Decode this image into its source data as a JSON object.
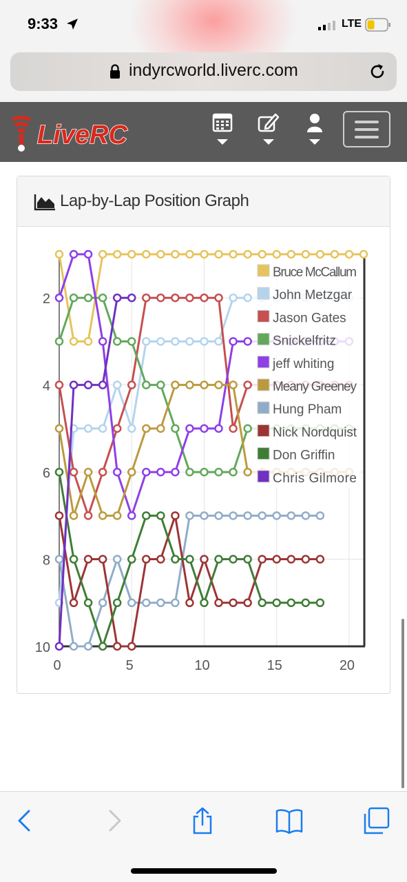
{
  "status_bar": {
    "time": "9:33",
    "network": "LTE"
  },
  "browser": {
    "url": "indyrcworld.liverc.com"
  },
  "site": {
    "brand": "LiveRC"
  },
  "nav_icons": [
    "calendar-icon",
    "edit-icon",
    "user-icon"
  ],
  "panel": {
    "title": "Lap-by-Lap Position Graph"
  },
  "chart_data": {
    "type": "line",
    "title": "Lap-by-Lap Position Graph",
    "xlim": [
      0,
      21
    ],
    "ylim": [
      10,
      1
    ],
    "y_reversed": true,
    "x_ticks": [
      0,
      5,
      10,
      15,
      20
    ],
    "y_ticks": [
      2,
      4,
      6,
      8,
      10
    ],
    "grid": true,
    "legend_position": "top-right",
    "series": [
      {
        "name": "Bruce McCallum",
        "color": "#e6c35c",
        "values": [
          1,
          3,
          3,
          1,
          1,
          1,
          1,
          1,
          1,
          1,
          1,
          1,
          1,
          1,
          1,
          1,
          1,
          1,
          1,
          1,
          1,
          1
        ]
      },
      {
        "name": "John Metzgar",
        "color": "#b4d4ee",
        "values": [
          9,
          5,
          5,
          5,
          4,
          5,
          3,
          3,
          3,
          3,
          3,
          3,
          2,
          2,
          2,
          2,
          2,
          2,
          2,
          2,
          2
        ]
      },
      {
        "name": "Jason Gates",
        "color": "#c64f4f",
        "values": [
          4,
          6,
          7,
          6,
          5,
          4,
          2,
          2,
          2,
          2,
          2,
          2,
          5,
          4,
          4,
          4,
          4,
          4,
          4,
          4,
          4
        ]
      },
      {
        "name": "Snickelfritz",
        "color": "#62a85c",
        "values": [
          3,
          2,
          2,
          2,
          3,
          3,
          4,
          4,
          5,
          6,
          6,
          6,
          6,
          5,
          5,
          5,
          5,
          5,
          5,
          5,
          5
        ]
      },
      {
        "name": "jeff whiting",
        "color": "#8e3fe6",
        "values": [
          2,
          1,
          1,
          3,
          6,
          7,
          6,
          6,
          6,
          5,
          5,
          5,
          3,
          3,
          3,
          3,
          3,
          3,
          3,
          3,
          3
        ]
      },
      {
        "name": "Meany Greeney",
        "color": "#bb9a3f",
        "values": [
          5,
          7,
          6,
          7,
          7,
          6,
          5,
          5,
          4,
          4,
          4,
          4,
          4,
          6,
          6,
          6,
          6,
          6,
          6,
          6,
          6
        ]
      },
      {
        "name": "Hung Pham",
        "color": "#90acc8",
        "values": [
          8,
          10,
          10,
          9,
          8,
          9,
          9,
          9,
          9,
          7,
          7,
          7,
          7,
          7,
          7,
          7,
          7,
          7,
          7
        ]
      },
      {
        "name": "Nick Nordquist",
        "color": "#9c3434",
        "values": [
          7,
          9,
          8,
          8,
          10,
          10,
          8,
          8,
          7,
          9,
          8,
          9,
          9,
          9,
          8,
          8,
          8,
          8,
          8
        ]
      },
      {
        "name": "Don Griffin",
        "color": "#3f7d36",
        "values": [
          6,
          8,
          9,
          10,
          9,
          8,
          7,
          7,
          8,
          8,
          9,
          8,
          8,
          8,
          9,
          9,
          9,
          9,
          9
        ]
      },
      {
        "name": "Chris Gilmore",
        "color": "#7030c0",
        "values": [
          10,
          4,
          4,
          4,
          2,
          2
        ]
      }
    ]
  }
}
